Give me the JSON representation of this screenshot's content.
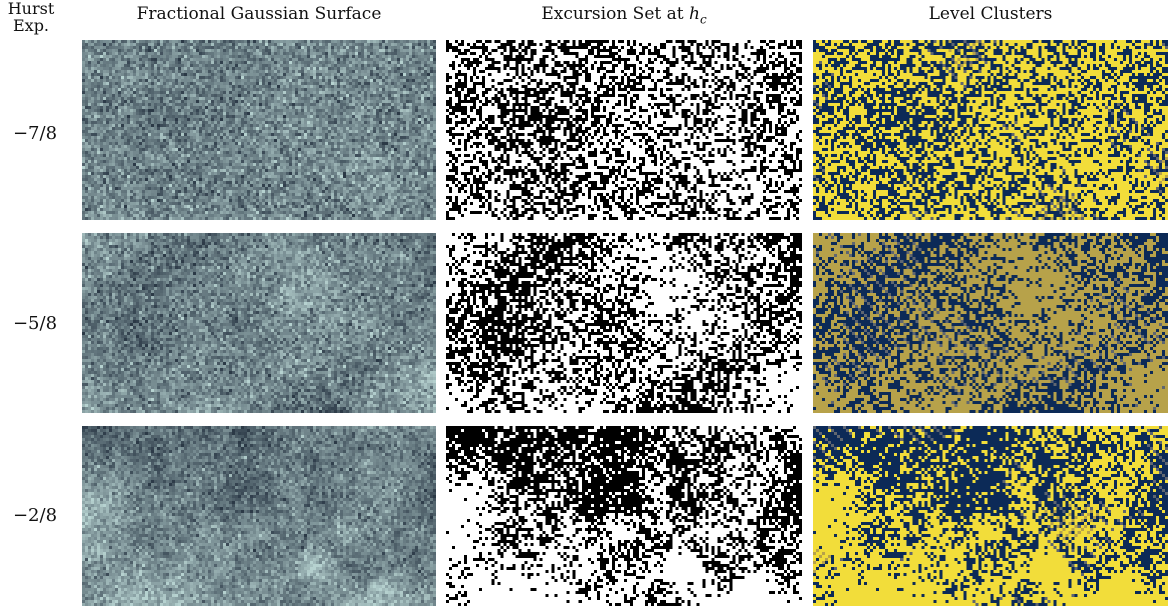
{
  "header": {
    "row_header_line1": "Hurst",
    "row_header_line2": "Exp.",
    "col_titles": {
      "surface": "Fractional Gaussian Surface",
      "excursion_prefix": "Excursion Set at ",
      "excursion_var": "h",
      "excursion_sub": "c",
      "clusters": "Level Clusters"
    }
  },
  "rows": [
    {
      "label": "−7/8",
      "hurst": -0.875
    },
    {
      "label": "−5/8",
      "hurst": -0.625
    },
    {
      "label": "−2/8",
      "hurst": -0.25
    }
  ],
  "colors": {
    "surface_dark": "#0f1a2b",
    "surface_light": "#c9e6e2",
    "excursion_on": "#000000",
    "excursion_off": "#ffffff",
    "cluster_yellow": "#f2dd3a",
    "cluster_navy": "#0c2a57",
    "cluster_gray": "#5f6670",
    "cluster_olive": "#b7a24a"
  }
}
